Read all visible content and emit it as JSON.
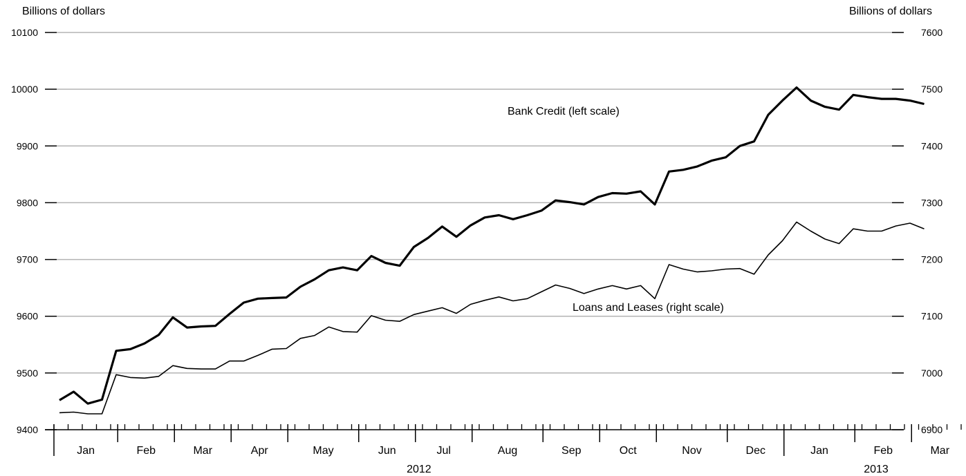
{
  "chart_data": {
    "type": "line",
    "left_axis": {
      "label": "Billions of dollars",
      "ylim": [
        9400,
        10100
      ],
      "ticks": [
        9400,
        9500,
        9600,
        9700,
        9800,
        9900,
        10000,
        10100
      ]
    },
    "right_axis": {
      "label": "Billions of dollars",
      "ylim": [
        6900,
        7600
      ],
      "ticks": [
        6900,
        7000,
        7100,
        7200,
        7300,
        7400,
        7500,
        7600
      ]
    },
    "x_axis": {
      "months": [
        "Jan",
        "Feb",
        "Mar",
        "Apr",
        "May",
        "Jun",
        "Jul",
        "Aug",
        "Sep",
        "Oct",
        "Nov",
        "Dec",
        "Jan",
        "Feb",
        "Mar"
      ],
      "years": [
        "2012",
        "2013"
      ],
      "weeks_per_month": [
        5,
        4,
        4,
        4,
        5,
        4,
        4,
        5,
        4,
        4,
        5,
        4,
        5,
        4,
        4
      ]
    },
    "grid": true,
    "series": [
      {
        "name": "Bank Credit (left scale)",
        "axis": "left",
        "values": [
          9452,
          9467,
          9446,
          9453,
          9539,
          9542,
          9552,
          9567,
          9598,
          9580,
          9582,
          9583,
          9604,
          9624,
          9631,
          9632,
          9633,
          9652,
          9665,
          9681,
          9686,
          9681,
          9706,
          9694,
          9689,
          9722,
          9738,
          9758,
          9740,
          9760,
          9774,
          9778,
          9771,
          9778,
          9786,
          9804,
          9801,
          9797,
          9810,
          9817,
          9816,
          9820,
          9797,
          9855,
          9858,
          9864,
          9874,
          9880,
          9900,
          9908,
          9955,
          9980,
          10003,
          9980,
          9969,
          9964,
          9990,
          9986,
          9983,
          9983,
          9980,
          9974
        ]
      },
      {
        "name": "Loans and Leases (right scale)",
        "axis": "right",
        "values": [
          6930,
          6931,
          6928,
          6928,
          6997,
          6992,
          6991,
          6994,
          7013,
          7008,
          7007,
          7007,
          7021,
          7021,
          7031,
          7042,
          7043,
          7061,
          7066,
          7081,
          7073,
          7072,
          7101,
          7093,
          7091,
          7103,
          7109,
          7115,
          7105,
          7121,
          7128,
          7134,
          7127,
          7131,
          7143,
          7155,
          7149,
          7140,
          7148,
          7154,
          7148,
          7154,
          7131,
          7191,
          7183,
          7178,
          7180,
          7183,
          7184,
          7174,
          7208,
          7233,
          7266,
          7250,
          7236,
          7228,
          7254,
          7250,
          7250,
          7259,
          7264,
          7254
        ]
      }
    ]
  }
}
